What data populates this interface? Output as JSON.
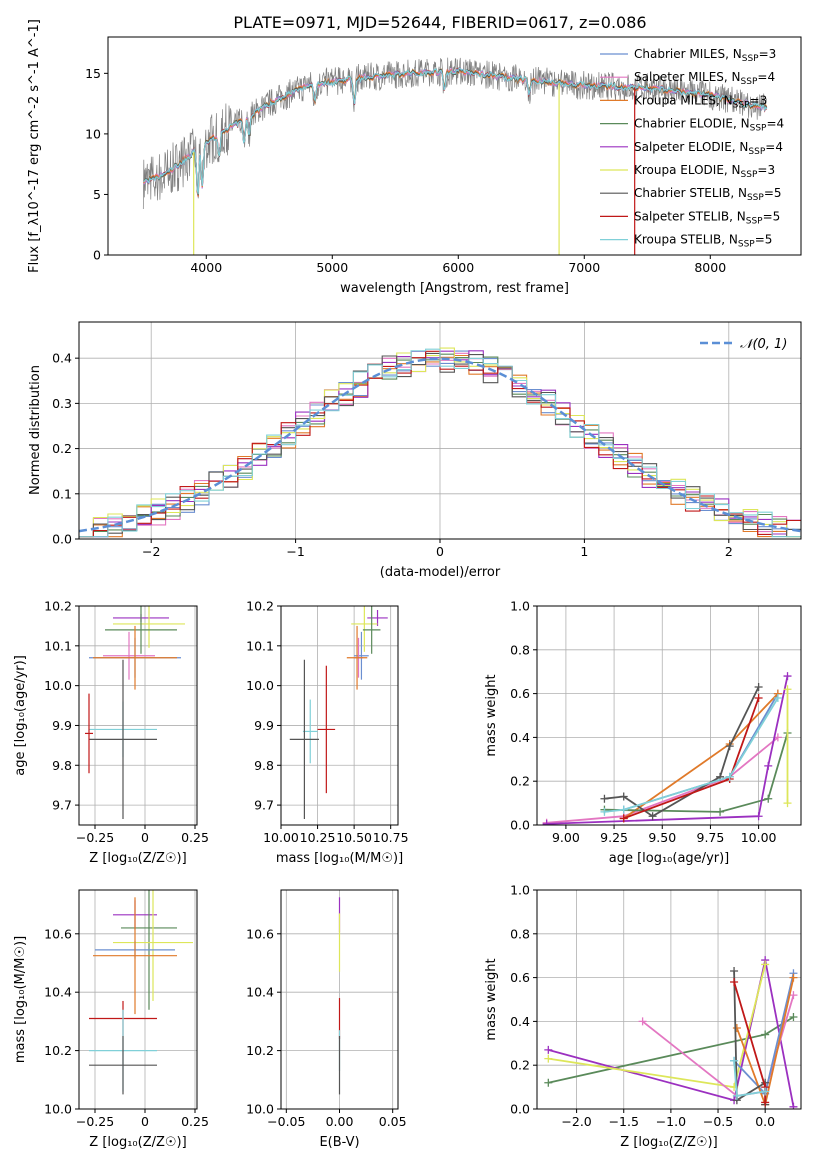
{
  "figure": {
    "title": "PLATE=0971, MJD=52644, FIBERID=0617, z=0.086"
  },
  "colors": {
    "Chabrier MILES": "#6b8fd0",
    "Salpeter MILES": "#e377c2",
    "Kroupa MILES": "#e07a2a",
    "Chabrier ELODIE": "#5a8a5a",
    "Salpeter ELODIE": "#9b30c0",
    "Kroupa ELODIE": "#dde65a",
    "Chabrier STELIB": "#555555",
    "Salpeter STELIB": "#c01818",
    "Kroupa STELIB": "#80d0d8",
    "data": "#7f7f7f",
    "normal": "#5b8fd6",
    "grid": "#b0b0b0"
  },
  "chart_data": [
    {
      "id": "spectrum",
      "type": "line",
      "xlabel": "wavelength [Angstrom, rest frame]",
      "ylabel": "Flux [f_λ10^-17 erg cm^-2 s^-1 A^-1]",
      "xlim": [
        3220,
        8720
      ],
      "ylim": [
        0,
        18
      ],
      "xticks": [
        4000,
        5000,
        6000,
        7000,
        8000
      ],
      "yticks": [
        0,
        5,
        10,
        15
      ],
      "grid": false,
      "legend_position": "right",
      "legend": [
        {
          "model": "Chabrier MILES",
          "label": "Chabrier MILES, N",
          "sub": "SSP",
          "n": "=3"
        },
        {
          "model": "Salpeter MILES",
          "label": "Salpeter MILES, N",
          "sub": "SSP",
          "n": "=4"
        },
        {
          "model": "Kroupa MILES",
          "label": "Kroupa MILES, N",
          "sub": "SSP",
          "n": "=3"
        },
        {
          "model": "Chabrier ELODIE",
          "label": "Chabrier ELODIE, N",
          "sub": "SSP",
          "n": "=4"
        },
        {
          "model": "Salpeter ELODIE",
          "label": "Salpeter ELODIE, N",
          "sub": "SSP",
          "n": "=4"
        },
        {
          "model": "Kroupa ELODIE",
          "label": "Kroupa ELODIE, N",
          "sub": "SSP",
          "n": "=3"
        },
        {
          "model": "Chabrier STELIB",
          "label": "Chabrier STELIB, N",
          "sub": "SSP",
          "n": "=5"
        },
        {
          "model": "Salpeter STELIB",
          "label": "Salpeter STELIB, N",
          "sub": "SSP",
          "n": "=5"
        },
        {
          "model": "Kroupa STELIB",
          "label": "Kroupa STELIB, N",
          "sub": "SSP",
          "n": "=5"
        }
      ],
      "continuum": [
        [
          3500,
          6.0
        ],
        [
          3700,
          6.8
        ],
        [
          3900,
          8.5
        ],
        [
          4100,
          10.0
        ],
        [
          4300,
          11.2
        ],
        [
          4500,
          12.5
        ],
        [
          4800,
          14.0
        ],
        [
          5200,
          14.6
        ],
        [
          5600,
          15.0
        ],
        [
          6000,
          15.2
        ],
        [
          6500,
          14.5
        ],
        [
          7000,
          14.0
        ],
        [
          7500,
          13.8
        ],
        [
          8000,
          13.2
        ],
        [
          8400,
          12.2
        ]
      ],
      "absorption_features": [
        [
          3933,
          4.0
        ],
        [
          3968,
          3.5
        ],
        [
          4101,
          2.0
        ],
        [
          4300,
          2.0
        ],
        [
          4340,
          1.5
        ],
        [
          4861,
          1.5
        ],
        [
          5175,
          2.0
        ],
        [
          5890,
          1.5
        ],
        [
          6563,
          1.2
        ]
      ],
      "model_dropouts": [
        {
          "model": "Kroupa ELODIE",
          "x": 3900
        },
        {
          "model": "Kroupa ELODIE",
          "x": 6800
        },
        {
          "model": "Salpeter STELIB",
          "x": 7400
        }
      ]
    },
    {
      "id": "residuals",
      "type": "step",
      "xlabel": "(data-model)/error",
      "ylabel": "Normed distribution",
      "xlim": [
        -2.5,
        2.5
      ],
      "ylim": [
        0,
        0.48
      ],
      "xticks": [
        -2,
        -1,
        0,
        1,
        2
      ],
      "yticks": [
        0.0,
        0.1,
        0.2,
        0.3,
        0.4
      ],
      "grid": true,
      "legend_position": "top-right",
      "reference_curve": {
        "name": "𝒩(0, 1)",
        "mean": 0,
        "sigma": 1
      },
      "bin_width": 0.1
    },
    {
      "id": "age-vs-Z",
      "type": "errorbar",
      "xlabel": "Z [log₁₀(Z/Z☉)]",
      "ylabel": "age  [log₁₀(age/yr)]",
      "xlim": [
        -0.33,
        0.26
      ],
      "ylim": [
        9.65,
        10.2
      ],
      "xticks": [
        -0.25,
        0.0,
        0.25
      ],
      "yticks": [
        9.7,
        9.8,
        9.9,
        10.0,
        10.1,
        10.2
      ],
      "grid": true,
      "points": [
        {
          "model": "Salpeter ELODIE",
          "x": -0.02,
          "y": 10.17,
          "xerr": 0.14,
          "yerr": 0.01
        },
        {
          "model": "Kroupa ELODIE",
          "x": 0.02,
          "y": 10.155,
          "xerr": 0.18,
          "yerr": 0.06
        },
        {
          "model": "Chabrier ELODIE",
          "x": -0.02,
          "y": 10.14,
          "xerr": 0.18,
          "yerr": 0.06
        },
        {
          "model": "Salpeter MILES",
          "x": -0.08,
          "y": 10.075,
          "xerr": 0.13,
          "yerr": 0.06
        },
        {
          "model": "Chabrier MILES",
          "x": -0.05,
          "y": 10.07,
          "xerr": 0.23,
          "yerr": 0.05
        },
        {
          "model": "Kroupa MILES",
          "x": -0.05,
          "y": 10.07,
          "xerr": 0.21,
          "yerr": 0.08
        },
        {
          "model": "Kroupa STELIB",
          "x": -0.11,
          "y": 9.89,
          "xerr": 0.17,
          "yerr": 0.07
        },
        {
          "model": "Chabrier STELIB",
          "x": -0.11,
          "y": 9.865,
          "xerr": 0.17,
          "yerr": 0.2
        },
        {
          "model": "Salpeter STELIB",
          "x": -0.28,
          "y": 9.88,
          "xerr": 0.02,
          "yerr": 0.1
        }
      ]
    },
    {
      "id": "age-vs-mass",
      "type": "errorbar",
      "xlabel": "mass [log₁₀(M/M☉)]",
      "ylabel": "",
      "xlim": [
        10.0,
        10.8
      ],
      "ylim": [
        9.65,
        10.2
      ],
      "xticks": [
        10.0,
        10.25,
        10.5,
        10.75
      ],
      "xtick_labels": [
        "10.00",
        "10.25",
        "10.50",
        "10.75"
      ],
      "yticks": [
        9.7,
        9.8,
        9.9,
        10.0,
        10.1,
        10.2
      ],
      "grid": true,
      "points": [
        {
          "model": "Salpeter ELODIE",
          "x": 10.66,
          "y": 10.17,
          "xerr": 0.07,
          "yerr": 0.02
        },
        {
          "model": "Kroupa ELODIE",
          "x": 10.57,
          "y": 10.155,
          "xerr": 0.09,
          "yerr": 0.07
        },
        {
          "model": "Chabrier ELODIE",
          "x": 10.62,
          "y": 10.14,
          "xerr": 0.06,
          "yerr": 0.06
        },
        {
          "model": "Chabrier MILES",
          "x": 10.55,
          "y": 10.075,
          "xerr": 0.05,
          "yerr": 0.06
        },
        {
          "model": "Salpeter MILES",
          "x": 10.53,
          "y": 10.07,
          "xerr": 0.03,
          "yerr": 0.05
        },
        {
          "model": "Kroupa MILES",
          "x": 10.52,
          "y": 10.07,
          "xerr": 0.07,
          "yerr": 0.08
        },
        {
          "model": "Kroupa STELIB",
          "x": 10.2,
          "y": 9.885,
          "xerr": 0.05,
          "yerr": 0.08
        },
        {
          "model": "Salpeter STELIB",
          "x": 10.31,
          "y": 9.89,
          "xerr": 0.06,
          "yerr": 0.16
        },
        {
          "model": "Chabrier STELIB",
          "x": 10.16,
          "y": 9.865,
          "xerr": 0.1,
          "yerr": 0.2
        }
      ]
    },
    {
      "id": "weight-vs-age",
      "type": "line",
      "xlabel": "age  [log₁₀(age/yr)]",
      "ylabel": "mass weight",
      "xlim": [
        8.85,
        10.22
      ],
      "ylim": [
        0,
        1.0
      ],
      "xticks": [
        9.0,
        9.25,
        9.5,
        9.75,
        10.0
      ],
      "xtick_labels": [
        "9.00",
        "9.25",
        "9.50",
        "9.75",
        "10.00"
      ],
      "yticks": [
        0.0,
        0.2,
        0.4,
        0.6,
        0.8,
        1.0
      ],
      "grid": true,
      "series": [
        {
          "model": "Chabrier MILES",
          "points": [
            [
              9.3,
              0.07
            ],
            [
              9.85,
              0.22
            ],
            [
              10.1,
              0.6
            ]
          ]
        },
        {
          "model": "Salpeter MILES",
          "points": [
            [
              8.9,
              0.01
            ],
            [
              9.3,
              0.04
            ],
            [
              9.85,
              0.22
            ],
            [
              10.1,
              0.4
            ]
          ]
        },
        {
          "model": "Kroupa MILES",
          "points": [
            [
              9.3,
              0.03
            ],
            [
              9.85,
              0.37
            ],
            [
              10.1,
              0.6
            ]
          ]
        },
        {
          "model": "Chabrier ELODIE",
          "points": [
            [
              9.2,
              0.07
            ],
            [
              9.8,
              0.06
            ],
            [
              10.05,
              0.12
            ],
            [
              10.15,
              0.42
            ]
          ]
        },
        {
          "model": "Salpeter ELODIE",
          "points": [
            [
              8.9,
              0.005
            ],
            [
              10.0,
              0.04
            ],
            [
              10.05,
              0.27
            ],
            [
              10.15,
              0.68
            ]
          ]
        },
        {
          "model": "Kroupa ELODIE",
          "points": [
            [
              10.15,
              0.1
            ],
            [
              10.15,
              0.62
            ]
          ]
        },
        {
          "model": "Chabrier STELIB",
          "points": [
            [
              9.2,
              0.12
            ],
            [
              9.3,
              0.13
            ],
            [
              9.45,
              0.04
            ],
            [
              9.8,
              0.22
            ],
            [
              9.85,
              0.36
            ],
            [
              10.0,
              0.63
            ]
          ]
        },
        {
          "model": "Salpeter STELIB",
          "points": [
            [
              9.3,
              0.03
            ],
            [
              9.85,
              0.21
            ],
            [
              10.0,
              0.58
            ]
          ]
        },
        {
          "model": "Kroupa STELIB",
          "points": [
            [
              9.2,
              0.06
            ],
            [
              9.3,
              0.07
            ],
            [
              9.85,
              0.22
            ],
            [
              10.1,
              0.58
            ]
          ]
        }
      ]
    },
    {
      "id": "mass-vs-Z",
      "type": "errorbar",
      "xlabel": "Z [log₁₀(Z/Z☉)]",
      "ylabel": "mass [log₁₀(M/M☉)]",
      "xlim": [
        -0.33,
        0.26
      ],
      "ylim": [
        10.0,
        10.75
      ],
      "xticks": [
        -0.25,
        0.0,
        0.25
      ],
      "yticks": [
        10.0,
        10.2,
        10.4,
        10.6
      ],
      "grid": true,
      "points": [
        {
          "model": "Salpeter ELODIE",
          "x": -0.05,
          "y": 10.665,
          "xerr": 0.11,
          "yerr": 0.05
        },
        {
          "model": "Chabrier ELODIE",
          "x": 0.02,
          "y": 10.62,
          "xerr": 0.14,
          "yerr": 0.28
        },
        {
          "model": "Kroupa ELODIE",
          "x": 0.04,
          "y": 10.57,
          "xerr": 0.2,
          "yerr": 0.2
        },
        {
          "model": "Chabrier MILES",
          "x": -0.05,
          "y": 10.545,
          "xerr": 0.2,
          "yerr": 0.03
        },
        {
          "model": "Kroupa MILES",
          "x": -0.05,
          "y": 10.525,
          "xerr": 0.21,
          "yerr": 0.2
        },
        {
          "model": "Salpeter STELIB",
          "x": -0.11,
          "y": 10.31,
          "xerr": 0.17,
          "yerr": 0.06
        },
        {
          "model": "Kroupa STELIB",
          "x": -0.11,
          "y": 10.2,
          "xerr": 0.17,
          "yerr": 0.14
        },
        {
          "model": "Chabrier STELIB",
          "x": -0.11,
          "y": 10.15,
          "xerr": 0.17,
          "yerr": 0.1
        }
      ]
    },
    {
      "id": "mass-vs-ebv",
      "type": "errorbar",
      "xlabel": "E(B-V)",
      "ylabel": "",
      "xlim": [
        -0.055,
        0.055
      ],
      "ylim": [
        10.0,
        10.75
      ],
      "xticks": [
        -0.05,
        0.0,
        0.05
      ],
      "xtick_labels": [
        "−0.05",
        "0.00",
        "0.05"
      ],
      "yticks": [
        10.0,
        10.2,
        10.4,
        10.6
      ],
      "grid": true,
      "points": [
        {
          "model": "Salpeter ELODIE",
          "x": 0.0,
          "y": 10.665,
          "xerr": 0.0,
          "yerr": 0.06
        },
        {
          "model": "Kroupa ELODIE",
          "x": 0.0,
          "y": 10.57,
          "xerr": 0.0,
          "yerr": 0.1
        },
        {
          "model": "Salpeter STELIB",
          "x": 0.0,
          "y": 10.31,
          "xerr": 0.0,
          "yerr": 0.07
        },
        {
          "model": "Kroupa STELIB",
          "x": 0.0,
          "y": 10.2,
          "xerr": 0.0,
          "yerr": 0.07
        },
        {
          "model": "Chabrier STELIB",
          "x": 0.0,
          "y": 10.15,
          "xerr": 0.0,
          "yerr": 0.1
        }
      ]
    },
    {
      "id": "weight-vs-Z",
      "type": "line",
      "xlabel": "Z [log₁₀(Z/Z☉)]",
      "ylabel": "mass weight",
      "xlim": [
        -2.42,
        0.38
      ],
      "ylim": [
        0,
        1.0
      ],
      "xticks": [
        -2.0,
        -1.5,
        -1.0,
        -0.5,
        0.0
      ],
      "xtick_labels": [
        "−2.0",
        "−1.5",
        "−1.0",
        "−0.5",
        "0.0"
      ],
      "yticks": [
        0.0,
        0.2,
        0.4,
        0.6,
        0.8,
        1.0
      ],
      "grid": true,
      "series": [
        {
          "model": "Chabrier ELODIE",
          "points": [
            [
              -2.3,
              0.12
            ],
            [
              0.0,
              0.34
            ],
            [
              0.3,
              0.42
            ]
          ]
        },
        {
          "model": "Salpeter ELODIE",
          "points": [
            [
              -2.3,
              0.27
            ],
            [
              -0.33,
              0.04
            ],
            [
              0.0,
              0.68
            ],
            [
              0.3,
              0.01
            ]
          ]
        },
        {
          "model": "Kroupa ELODIE",
          "points": [
            [
              -2.3,
              0.23
            ],
            [
              -0.33,
              0.1
            ],
            [
              0.0,
              0.66
            ]
          ]
        },
        {
          "model": "Salpeter MILES",
          "points": [
            [
              -1.3,
              0.4
            ],
            [
              -0.3,
              0.06
            ],
            [
              0.0,
              0.08
            ],
            [
              0.3,
              0.52
            ]
          ]
        },
        {
          "model": "Chabrier MILES",
          "points": [
            [
              -0.33,
              0.22
            ],
            [
              0.0,
              0.07
            ],
            [
              0.3,
              0.62
            ]
          ]
        },
        {
          "model": "Kroupa MILES",
          "points": [
            [
              -0.3,
              0.37
            ],
            [
              0.0,
              0.02
            ],
            [
              0.3,
              0.6
            ]
          ]
        },
        {
          "model": "Chabrier STELIB",
          "points": [
            [
              -0.33,
              0.63
            ],
            [
              -0.3,
              0.04
            ],
            [
              0.0,
              0.12
            ],
            [
              0.0,
              0.02
            ]
          ]
        },
        {
          "model": "Salpeter STELIB",
          "points": [
            [
              -0.33,
              0.58
            ],
            [
              0.0,
              0.1
            ],
            [
              0.0,
              0.03
            ]
          ]
        },
        {
          "model": "Kroupa STELIB",
          "points": [
            [
              -0.33,
              0.22
            ],
            [
              -0.3,
              0.06
            ],
            [
              0.0,
              0.08
            ]
          ]
        }
      ]
    }
  ]
}
